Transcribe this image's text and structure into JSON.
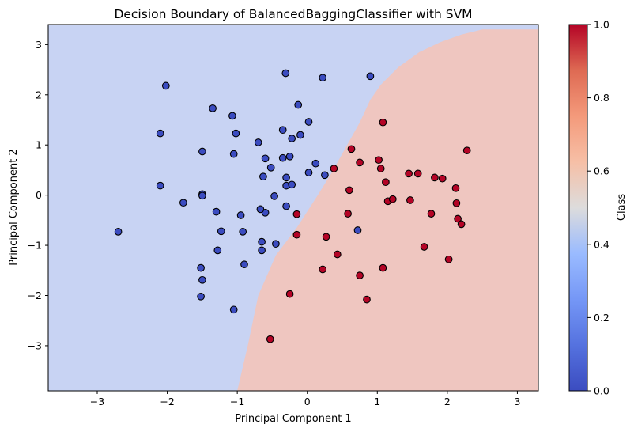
{
  "chart_data": {
    "type": "scatter",
    "title": "Decision Boundary of BalancedBaggingClassifier with SVM",
    "xlabel": "Principal Component 1",
    "ylabel": "Principal Component 2",
    "xlim": [
      -3.7,
      3.3
    ],
    "ylim": [
      -3.9,
      3.4
    ],
    "xticks": [
      -3,
      -2,
      -1,
      0,
      1,
      2,
      3
    ],
    "yticks": [
      -3,
      -2,
      -1,
      0,
      1,
      2,
      3
    ],
    "grid": false,
    "decision_boundary": {
      "class0_region_color": "#c8d3f3",
      "class1_region_color": "#efc6c0",
      "boundary_points": [
        [
          -1.0,
          -3.9
        ],
        [
          -0.85,
          -3.0
        ],
        [
          -0.7,
          -2.0
        ],
        [
          -0.45,
          -1.2
        ],
        [
          -0.15,
          -0.65
        ],
        [
          0.15,
          0.0
        ],
        [
          0.35,
          0.45
        ],
        [
          0.55,
          0.95
        ],
        [
          0.75,
          1.45
        ],
        [
          0.9,
          1.9
        ],
        [
          1.05,
          2.2
        ],
        [
          1.3,
          2.55
        ],
        [
          1.6,
          2.85
        ],
        [
          1.9,
          3.05
        ],
        [
          2.2,
          3.2
        ],
        [
          2.5,
          3.3
        ],
        [
          3.3,
          3.3
        ]
      ]
    },
    "colorbar": {
      "label": "Class",
      "min": 0.0,
      "max": 1.0,
      "ticks": [
        "0.0",
        "0.2",
        "0.4",
        "0.6",
        "0.8",
        "1.0"
      ],
      "colormap": "coolwarm"
    },
    "series": [
      {
        "class": 0,
        "color": "#3b4cc0",
        "points": [
          [
            -2.7,
            -0.73
          ],
          [
            -2.02,
            2.18
          ],
          [
            -2.1,
            1.23
          ],
          [
            -2.1,
            0.19
          ],
          [
            -1.77,
            -0.15
          ],
          [
            -1.5,
            0.87
          ],
          [
            -1.5,
            0.02
          ],
          [
            -1.5,
            -0.01
          ],
          [
            -1.52,
            -1.45
          ],
          [
            -1.5,
            -1.69
          ],
          [
            -1.52,
            -2.02
          ],
          [
            -1.35,
            1.73
          ],
          [
            -1.3,
            -0.33
          ],
          [
            -1.23,
            -0.72
          ],
          [
            -1.28,
            -1.1
          ],
          [
            -1.07,
            1.58
          ],
          [
            -1.02,
            1.23
          ],
          [
            -1.05,
            0.82
          ],
          [
            -0.95,
            -0.4
          ],
          [
            -0.92,
            -0.73
          ],
          [
            -0.9,
            -1.38
          ],
          [
            -1.05,
            -2.28
          ],
          [
            -0.7,
            1.05
          ],
          [
            -0.6,
            0.73
          ],
          [
            -0.63,
            0.37
          ],
          [
            -0.52,
            0.55
          ],
          [
            -0.6,
            -0.35
          ],
          [
            -0.67,
            -0.28
          ],
          [
            -0.65,
            -0.93
          ],
          [
            -0.65,
            -1.1
          ],
          [
            -0.47,
            -0.02
          ],
          [
            -0.45,
            -0.97
          ],
          [
            -0.35,
            1.3
          ],
          [
            -0.35,
            0.74
          ],
          [
            -0.3,
            0.35
          ],
          [
            -0.3,
            0.19
          ],
          [
            -0.3,
            -0.22
          ],
          [
            -0.25,
            0.77
          ],
          [
            -0.22,
            1.13
          ],
          [
            -0.22,
            0.21
          ],
          [
            -0.31,
            2.43
          ],
          [
            -0.13,
            1.8
          ],
          [
            -0.1,
            1.2
          ],
          [
            0.02,
            1.46
          ],
          [
            0.02,
            0.45
          ],
          [
            0.12,
            0.63
          ],
          [
            0.22,
            2.34
          ],
          [
            0.25,
            0.4
          ],
          [
            0.9,
            2.37
          ],
          [
            0.72,
            -0.7
          ]
        ]
      },
      {
        "class": 1,
        "color": "#b40426",
        "points": [
          [
            -0.53,
            -2.87
          ],
          [
            -0.25,
            -1.97
          ],
          [
            -0.15,
            -0.38
          ],
          [
            -0.15,
            -0.79
          ],
          [
            0.22,
            -1.48
          ],
          [
            0.27,
            -0.83
          ],
          [
            0.38,
            0.53
          ],
          [
            0.43,
            -1.18
          ],
          [
            0.58,
            -0.37
          ],
          [
            0.6,
            0.1
          ],
          [
            0.63,
            0.92
          ],
          [
            0.75,
            0.65
          ],
          [
            0.75,
            -1.6
          ],
          [
            0.85,
            -2.08
          ],
          [
            1.02,
            0.7
          ],
          [
            1.05,
            0.53
          ],
          [
            1.08,
            1.45
          ],
          [
            1.08,
            -1.45
          ],
          [
            1.12,
            0.26
          ],
          [
            1.15,
            -0.12
          ],
          [
            1.22,
            -0.08
          ],
          [
            1.45,
            0.43
          ],
          [
            1.47,
            -0.1
          ],
          [
            1.58,
            0.43
          ],
          [
            1.67,
            -1.03
          ],
          [
            1.77,
            -0.37
          ],
          [
            1.82,
            0.35
          ],
          [
            1.93,
            0.33
          ],
          [
            2.02,
            -1.28
          ],
          [
            2.12,
            0.14
          ],
          [
            2.13,
            -0.16
          ],
          [
            2.15,
            -0.47
          ],
          [
            2.2,
            -0.58
          ],
          [
            2.28,
            0.89
          ]
        ]
      }
    ]
  }
}
